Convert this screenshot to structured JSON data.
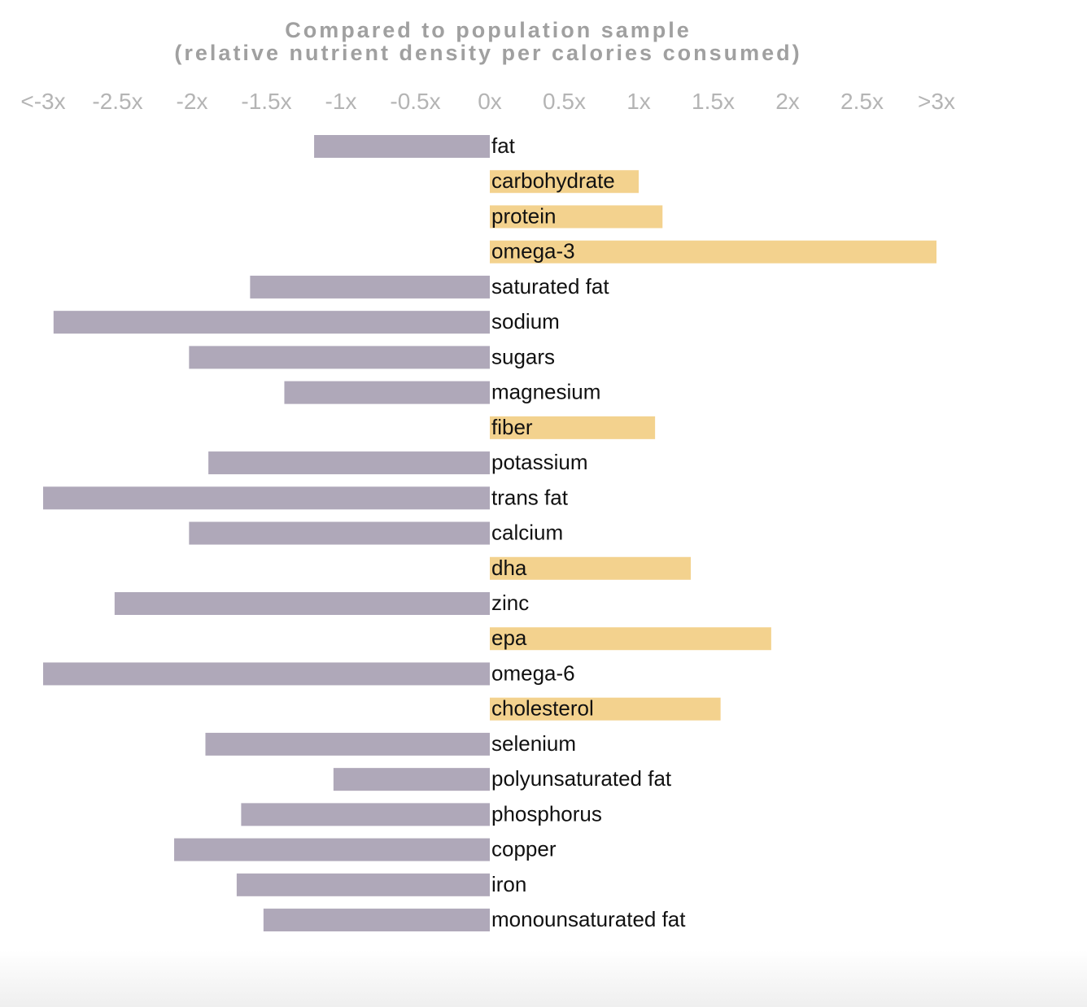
{
  "chart_data": {
    "type": "bar",
    "orientation": "horizontal",
    "title": "Compared to population sample",
    "subtitle": "(relative nutrient density per calories consumed)",
    "x_ticks": [
      "<-3x",
      "-2.5x",
      "-2x",
      "-1.5x",
      "-1x",
      "-0.5x",
      "0x",
      "0.5x",
      "1x",
      "1.5x",
      "2x",
      "2.5x",
      ">3x"
    ],
    "xlim": [
      -3,
      3
    ],
    "grid": false,
    "categories": [
      "fat",
      "carbohydrate",
      "protein",
      "omega-3",
      "saturated fat",
      "sodium",
      "sugars",
      "magnesium",
      "fiber",
      "potassium",
      "trans fat",
      "calcium",
      "dha",
      "zinc",
      "epa",
      "omega-6",
      "cholesterol",
      "selenium",
      "polyunsaturated fat",
      "phosphorus",
      "copper",
      "iron",
      "monounsaturated fat"
    ],
    "values": [
      -1.18,
      1.0,
      1.16,
      3.0,
      -1.61,
      -2.93,
      -2.02,
      -1.38,
      1.11,
      -1.89,
      -3.0,
      -2.02,
      1.35,
      -2.52,
      1.89,
      -3.0,
      1.55,
      -1.91,
      -1.05,
      -1.67,
      -2.12,
      -1.7,
      -1.52
    ],
    "colors": {
      "negative": "#afa8b9",
      "positive": "#f3d28e"
    }
  }
}
